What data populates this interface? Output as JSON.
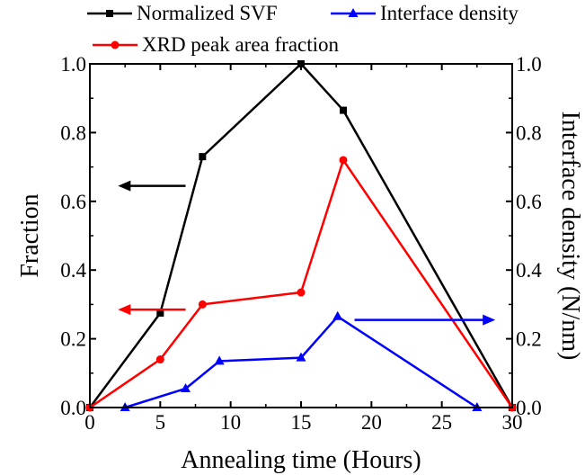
{
  "chart_data": {
    "type": "line",
    "xlabel": "Annealing time (Hours)",
    "ylabel": "Fraction",
    "y2label": "Interface density (N/nm)",
    "xlim": [
      0,
      30
    ],
    "ylim": [
      0,
      1.0
    ],
    "y2lim": [
      0,
      1.0
    ],
    "x_ticks": [
      "0",
      "5",
      "10",
      "15",
      "20",
      "25",
      "30"
    ],
    "y_ticks": [
      "0.0",
      "0.2",
      "0.4",
      "0.6",
      "0.8",
      "1.0"
    ],
    "y2_ticks": [
      "0.0",
      "0.2",
      "0.4",
      "0.6",
      "0.8",
      "1.0"
    ],
    "grid": false,
    "legend_position": "top",
    "series": [
      {
        "name": "Normalized SVF",
        "color": "#000000",
        "marker": "square",
        "axis": "left",
        "x": [
          0,
          5,
          8,
          15,
          18,
          30
        ],
        "y": [
          0.0,
          0.275,
          0.73,
          1.0,
          0.865,
          0.0
        ]
      },
      {
        "name": "Interface density",
        "color": "#0000ff",
        "marker": "triangle",
        "axis": "right",
        "x": [
          2.5,
          6.8,
          9.2,
          15.0,
          17.6,
          27.5
        ],
        "y": [
          0.0,
          0.055,
          0.135,
          0.145,
          0.265,
          0.0
        ]
      },
      {
        "name": "XRD peak area fraction",
        "color": "#ff0000",
        "marker": "circle",
        "axis": "left",
        "x": [
          0,
          5,
          8,
          15,
          18,
          30
        ],
        "y": [
          0.0,
          0.14,
          0.3,
          0.335,
          0.72,
          0.0
        ]
      }
    ],
    "annotations": [
      {
        "type": "arrow",
        "direction": "left",
        "series": "Normalized SVF",
        "color": "#000000",
        "x": [
          6.8,
          2.0
        ],
        "y": 0.645
      },
      {
        "type": "arrow",
        "direction": "left",
        "series": "XRD peak area fraction",
        "color": "#ff0000",
        "x": [
          6.8,
          2.0
        ],
        "y": 0.285
      },
      {
        "type": "arrow",
        "direction": "right",
        "series": "Interface density",
        "color": "#0000ff",
        "x": [
          18.8,
          28.8
        ],
        "y": 0.255
      }
    ]
  }
}
